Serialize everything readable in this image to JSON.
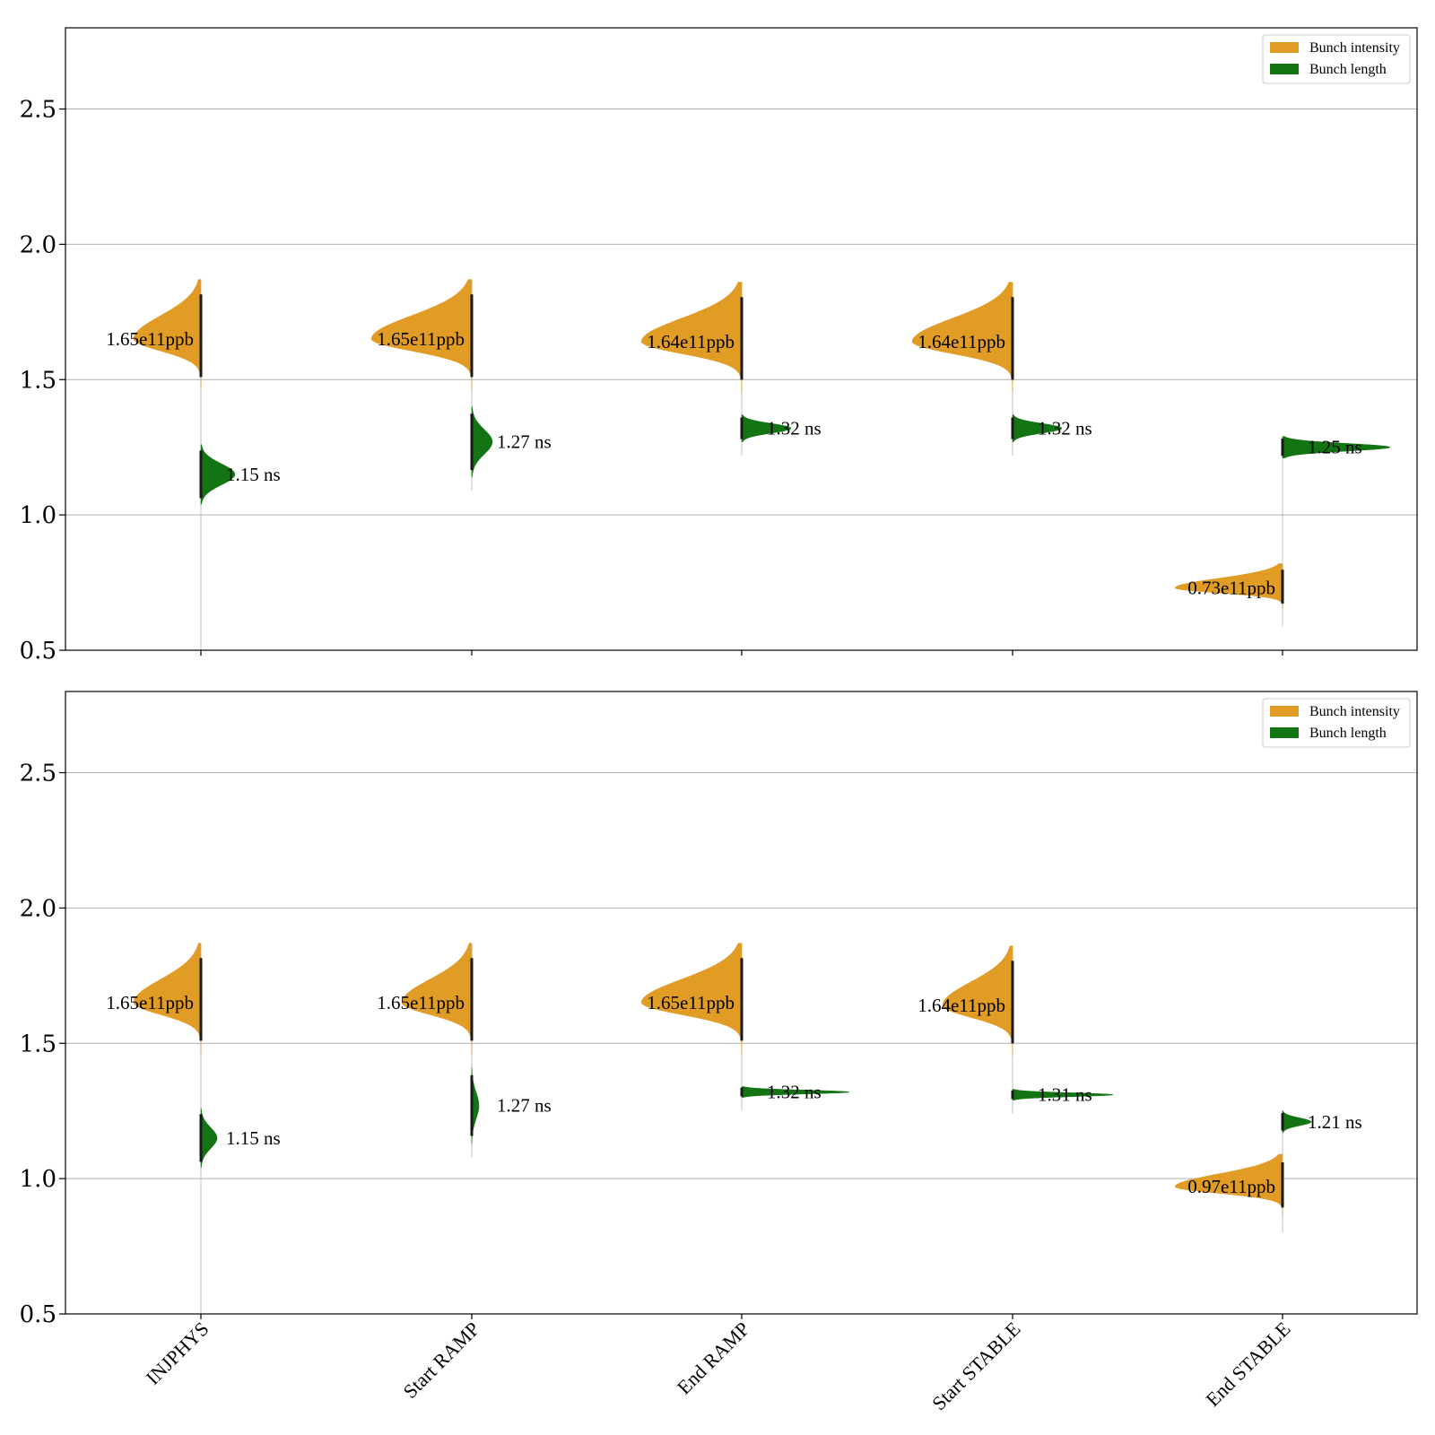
{
  "chart_data": [
    {
      "type": "violin",
      "categories": [
        "INJPHYS",
        "Start RAMP",
        "End RAMP",
        "Start STABLE",
        "End STABLE"
      ],
      "ylim": [
        0.5,
        2.8
      ],
      "yticks": [
        "0.5",
        "1.0",
        "1.5",
        "2.0",
        "2.5"
      ],
      "grid": "horizontal",
      "legend_placement": "upper right",
      "series": [
        {
          "name": "Bunch intensity",
          "color": "#E09C24",
          "side": "left",
          "values": [
            1.65,
            1.65,
            1.64,
            1.64,
            0.73
          ],
          "annotations": [
            "1.65e11ppb",
            "1.65e11ppb",
            "1.64e11ppb",
            "1.64e11ppb",
            "0.73e11ppb"
          ]
        },
        {
          "name": "Bunch length",
          "color": "#137413",
          "side": "right",
          "values": [
            1.15,
            1.27,
            1.32,
            1.32,
            1.25
          ],
          "annotations": [
            "1.15 ns",
            "1.27 ns",
            "1.32 ns",
            "1.32 ns",
            "1.25 ns"
          ]
        }
      ]
    },
    {
      "type": "violin",
      "categories": [
        "INJPHYS",
        "Start RAMP",
        "End RAMP",
        "Start STABLE",
        "End STABLE"
      ],
      "ylim": [
        0.5,
        2.8
      ],
      "yticks": [
        "0.5",
        "1.0",
        "1.5",
        "2.0",
        "2.5"
      ],
      "grid": "horizontal",
      "legend_placement": "upper right",
      "series": [
        {
          "name": "Bunch intensity",
          "color": "#E09C24",
          "side": "left",
          "values": [
            1.65,
            1.65,
            1.65,
            1.64,
            0.97
          ],
          "annotations": [
            "1.65e11ppb",
            "1.65e11ppb",
            "1.65e11ppb",
            "1.64e11ppb",
            "0.97e11ppb"
          ]
        },
        {
          "name": "Bunch length",
          "color": "#137413",
          "side": "right",
          "values": [
            1.15,
            1.27,
            1.32,
            1.31,
            1.21
          ],
          "annotations": [
            "1.15 ns",
            "1.27 ns",
            "1.32 ns",
            "1.31 ns",
            "1.21 ns"
          ]
        }
      ]
    }
  ]
}
